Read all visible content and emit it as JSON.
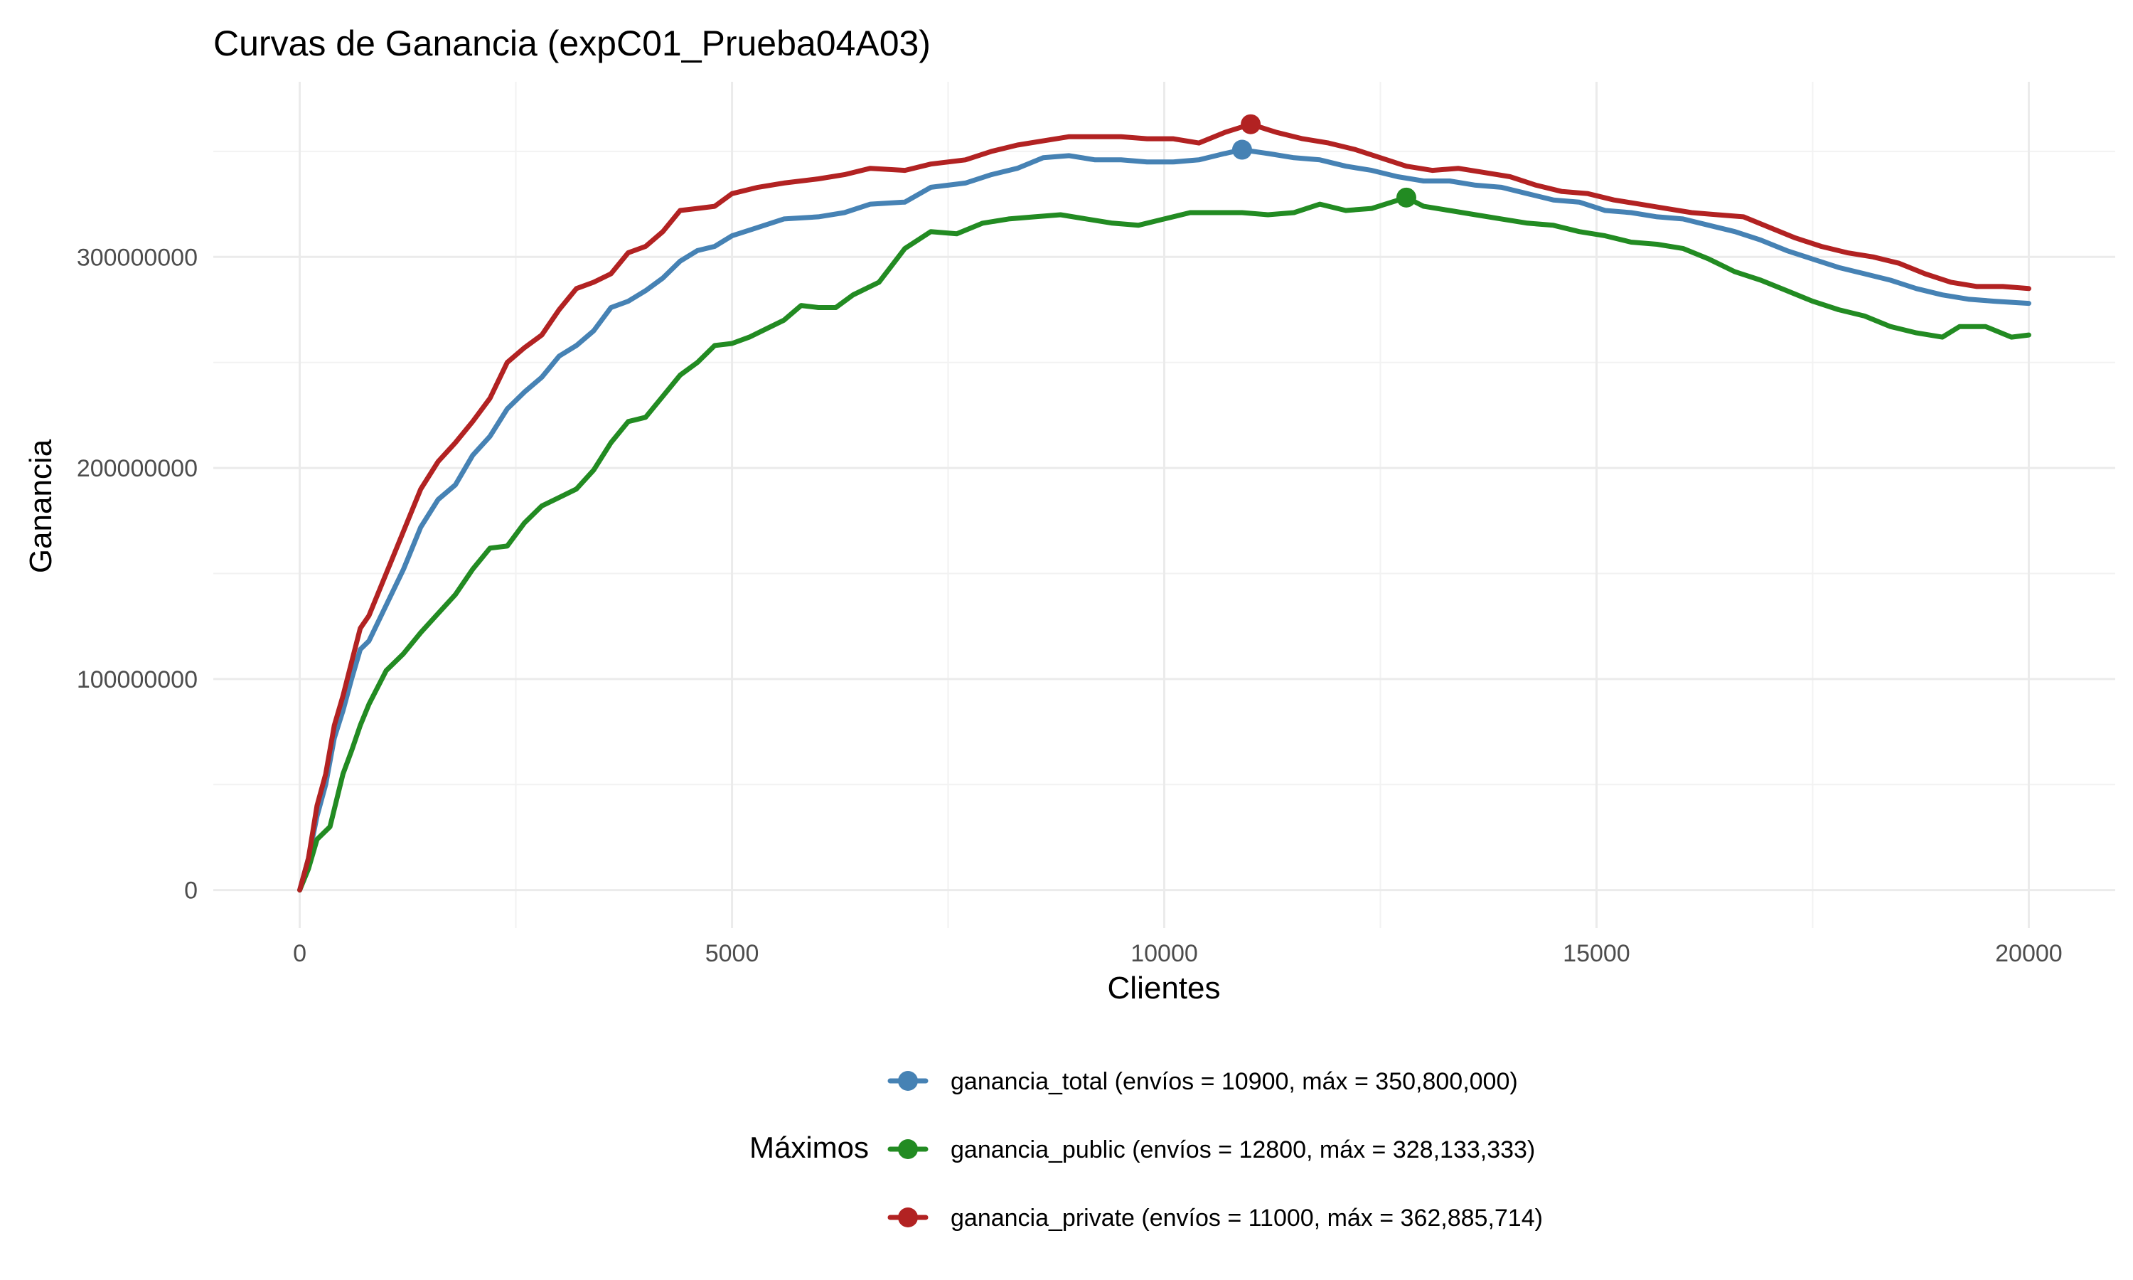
{
  "chart_data": {
    "type": "line",
    "title": "Curvas de Ganancia (expC01_Prueba04A03)",
    "xlabel": "Clientes",
    "ylabel": "Ganancia",
    "xlim": [
      -1000,
      21000
    ],
    "ylim": [
      -18000000,
      383000000
    ],
    "x_ticks": [
      0,
      5000,
      10000,
      15000,
      20000
    ],
    "x_tick_labels": [
      "0",
      "5000",
      "10000",
      "15000",
      "20000"
    ],
    "y_ticks": [
      0,
      100000000,
      200000000,
      300000000
    ],
    "y_tick_labels": [
      "0",
      "100000000",
      "200000000",
      "300000000"
    ],
    "grid": true,
    "legend": {
      "title": "Máximos",
      "position": "bottom",
      "entries": [
        {
          "series": "ganancia_total",
          "label": "ganancia_total (envíos = 10900, máx = 350,800,000)"
        },
        {
          "series": "ganancia_public",
          "label": "ganancia_public (envíos = 12800, máx = 328,133,333)"
        },
        {
          "series": "ganancia_private",
          "label": "ganancia_private (envíos = 11000, máx = 362,885,714)"
        }
      ]
    },
    "series": [
      {
        "name": "ganancia_total",
        "color": "#4682B4",
        "max_point": {
          "x": 10900,
          "y": 350800000
        },
        "points": [
          [
            0,
            0
          ],
          [
            100,
            15000000
          ],
          [
            200,
            35000000
          ],
          [
            300,
            50000000
          ],
          [
            400,
            72000000
          ],
          [
            500,
            85000000
          ],
          [
            600,
            100000000
          ],
          [
            700,
            114000000
          ],
          [
            800,
            118000000
          ],
          [
            1000,
            135000000
          ],
          [
            1200,
            152000000
          ],
          [
            1400,
            172000000
          ],
          [
            1600,
            185000000
          ],
          [
            1800,
            192000000
          ],
          [
            2000,
            206000000
          ],
          [
            2200,
            215000000
          ],
          [
            2400,
            228000000
          ],
          [
            2600,
            236000000
          ],
          [
            2800,
            243000000
          ],
          [
            3000,
            253000000
          ],
          [
            3200,
            258000000
          ],
          [
            3400,
            265000000
          ],
          [
            3600,
            276000000
          ],
          [
            3800,
            279000000
          ],
          [
            4000,
            284000000
          ],
          [
            4200,
            290000000
          ],
          [
            4400,
            298000000
          ],
          [
            4600,
            303000000
          ],
          [
            4800,
            305000000
          ],
          [
            5000,
            310000000
          ],
          [
            5300,
            314000000
          ],
          [
            5600,
            318000000
          ],
          [
            6000,
            319000000
          ],
          [
            6300,
            321000000
          ],
          [
            6600,
            325000000
          ],
          [
            7000,
            326000000
          ],
          [
            7300,
            333000000
          ],
          [
            7700,
            335000000
          ],
          [
            8000,
            339000000
          ],
          [
            8300,
            342000000
          ],
          [
            8600,
            347000000
          ],
          [
            8900,
            348000000
          ],
          [
            9200,
            346000000
          ],
          [
            9500,
            346000000
          ],
          [
            9800,
            345000000
          ],
          [
            10100,
            345000000
          ],
          [
            10400,
            346000000
          ],
          [
            10700,
            349000000
          ],
          [
            10900,
            350800000
          ],
          [
            11200,
            349000000
          ],
          [
            11500,
            347000000
          ],
          [
            11800,
            346000000
          ],
          [
            12100,
            343000000
          ],
          [
            12400,
            341000000
          ],
          [
            12700,
            338000000
          ],
          [
            13000,
            336000000
          ],
          [
            13300,
            336000000
          ],
          [
            13600,
            334000000
          ],
          [
            13900,
            333000000
          ],
          [
            14200,
            330000000
          ],
          [
            14500,
            327000000
          ],
          [
            14800,
            326000000
          ],
          [
            15100,
            322000000
          ],
          [
            15400,
            321000000
          ],
          [
            15700,
            319000000
          ],
          [
            16000,
            318000000
          ],
          [
            16300,
            315000000
          ],
          [
            16600,
            312000000
          ],
          [
            16900,
            308000000
          ],
          [
            17200,
            303000000
          ],
          [
            17500,
            299000000
          ],
          [
            17800,
            295000000
          ],
          [
            18100,
            292000000
          ],
          [
            18400,
            289000000
          ],
          [
            18700,
            285000000
          ],
          [
            19000,
            282000000
          ],
          [
            19300,
            280000000
          ],
          [
            19600,
            279000000
          ],
          [
            20000,
            278000000
          ]
        ]
      },
      {
        "name": "ganancia_public",
        "color": "#228B22",
        "max_point": {
          "x": 12800,
          "y": 328133333
        },
        "points": [
          [
            0,
            0
          ],
          [
            100,
            10000000
          ],
          [
            200,
            24000000
          ],
          [
            350,
            30000000
          ],
          [
            500,
            55000000
          ],
          [
            600,
            66000000
          ],
          [
            700,
            78000000
          ],
          [
            800,
            88000000
          ],
          [
            1000,
            104000000
          ],
          [
            1200,
            112000000
          ],
          [
            1400,
            122000000
          ],
          [
            1600,
            131000000
          ],
          [
            1800,
            140000000
          ],
          [
            2000,
            152000000
          ],
          [
            2200,
            162000000
          ],
          [
            2400,
            163000000
          ],
          [
            2600,
            174000000
          ],
          [
            2800,
            182000000
          ],
          [
            3000,
            186000000
          ],
          [
            3200,
            190000000
          ],
          [
            3400,
            199000000
          ],
          [
            3600,
            212000000
          ],
          [
            3800,
            222000000
          ],
          [
            4000,
            224000000
          ],
          [
            4200,
            234000000
          ],
          [
            4400,
            244000000
          ],
          [
            4600,
            250000000
          ],
          [
            4800,
            258000000
          ],
          [
            5000,
            259000000
          ],
          [
            5200,
            262000000
          ],
          [
            5400,
            266000000
          ],
          [
            5600,
            270000000
          ],
          [
            5800,
            277000000
          ],
          [
            6000,
            276000000
          ],
          [
            6200,
            276000000
          ],
          [
            6400,
            282000000
          ],
          [
            6700,
            288000000
          ],
          [
            7000,
            304000000
          ],
          [
            7300,
            312000000
          ],
          [
            7600,
            311000000
          ],
          [
            7900,
            316000000
          ],
          [
            8200,
            318000000
          ],
          [
            8500,
            319000000
          ],
          [
            8800,
            320000000
          ],
          [
            9100,
            318000000
          ],
          [
            9400,
            316000000
          ],
          [
            9700,
            315000000
          ],
          [
            10000,
            318000000
          ],
          [
            10300,
            321000000
          ],
          [
            10600,
            321000000
          ],
          [
            10900,
            321000000
          ],
          [
            11200,
            320000000
          ],
          [
            11500,
            321000000
          ],
          [
            11800,
            325000000
          ],
          [
            12100,
            322000000
          ],
          [
            12400,
            323000000
          ],
          [
            12800,
            328133333
          ],
          [
            13000,
            324000000
          ],
          [
            13300,
            322000000
          ],
          [
            13600,
            320000000
          ],
          [
            13900,
            318000000
          ],
          [
            14200,
            316000000
          ],
          [
            14500,
            315000000
          ],
          [
            14800,
            312000000
          ],
          [
            15100,
            310000000
          ],
          [
            15400,
            307000000
          ],
          [
            15700,
            306000000
          ],
          [
            16000,
            304000000
          ],
          [
            16300,
            299000000
          ],
          [
            16600,
            293000000
          ],
          [
            16900,
            289000000
          ],
          [
            17200,
            284000000
          ],
          [
            17500,
            279000000
          ],
          [
            17800,
            275000000
          ],
          [
            18100,
            272000000
          ],
          [
            18400,
            267000000
          ],
          [
            18700,
            264000000
          ],
          [
            19000,
            262000000
          ],
          [
            19200,
            267000000
          ],
          [
            19500,
            267000000
          ],
          [
            19800,
            262000000
          ],
          [
            20000,
            263000000
          ]
        ]
      },
      {
        "name": "ganancia_private",
        "color": "#B22222",
        "max_point": {
          "x": 11000,
          "y": 362885714
        },
        "points": [
          [
            0,
            0
          ],
          [
            100,
            15000000
          ],
          [
            200,
            40000000
          ],
          [
            300,
            55000000
          ],
          [
            400,
            78000000
          ],
          [
            500,
            92000000
          ],
          [
            600,
            108000000
          ],
          [
            700,
            124000000
          ],
          [
            800,
            130000000
          ],
          [
            1000,
            150000000
          ],
          [
            1200,
            170000000
          ],
          [
            1400,
            190000000
          ],
          [
            1600,
            203000000
          ],
          [
            1800,
            212000000
          ],
          [
            2000,
            222000000
          ],
          [
            2200,
            233000000
          ],
          [
            2400,
            250000000
          ],
          [
            2600,
            257000000
          ],
          [
            2800,
            263000000
          ],
          [
            3000,
            275000000
          ],
          [
            3200,
            285000000
          ],
          [
            3400,
            288000000
          ],
          [
            3600,
            292000000
          ],
          [
            3800,
            302000000
          ],
          [
            4000,
            305000000
          ],
          [
            4200,
            312000000
          ],
          [
            4400,
            322000000
          ],
          [
            4600,
            323000000
          ],
          [
            4800,
            324000000
          ],
          [
            5000,
            330000000
          ],
          [
            5300,
            333000000
          ],
          [
            5600,
            335000000
          ],
          [
            6000,
            337000000
          ],
          [
            6300,
            339000000
          ],
          [
            6600,
            342000000
          ],
          [
            7000,
            341000000
          ],
          [
            7300,
            344000000
          ],
          [
            7700,
            346000000
          ],
          [
            8000,
            350000000
          ],
          [
            8300,
            353000000
          ],
          [
            8600,
            355000000
          ],
          [
            8900,
            357000000
          ],
          [
            9200,
            357000000
          ],
          [
            9500,
            357000000
          ],
          [
            9800,
            356000000
          ],
          [
            10100,
            356000000
          ],
          [
            10400,
            354000000
          ],
          [
            10700,
            359000000
          ],
          [
            11000,
            362885714
          ],
          [
            11300,
            359000000
          ],
          [
            11600,
            356000000
          ],
          [
            11900,
            354000000
          ],
          [
            12200,
            351000000
          ],
          [
            12500,
            347000000
          ],
          [
            12800,
            343000000
          ],
          [
            13100,
            341000000
          ],
          [
            13400,
            342000000
          ],
          [
            13700,
            340000000
          ],
          [
            14000,
            338000000
          ],
          [
            14300,
            334000000
          ],
          [
            14600,
            331000000
          ],
          [
            14900,
            330000000
          ],
          [
            15200,
            327000000
          ],
          [
            15500,
            325000000
          ],
          [
            15800,
            323000000
          ],
          [
            16100,
            321000000
          ],
          [
            16400,
            320000000
          ],
          [
            16700,
            319000000
          ],
          [
            17000,
            314000000
          ],
          [
            17300,
            309000000
          ],
          [
            17600,
            305000000
          ],
          [
            17900,
            302000000
          ],
          [
            18200,
            300000000
          ],
          [
            18500,
            297000000
          ],
          [
            18800,
            292000000
          ],
          [
            19100,
            288000000
          ],
          [
            19400,
            286000000
          ],
          [
            19700,
            286000000
          ],
          [
            20000,
            285000000
          ]
        ]
      }
    ]
  }
}
